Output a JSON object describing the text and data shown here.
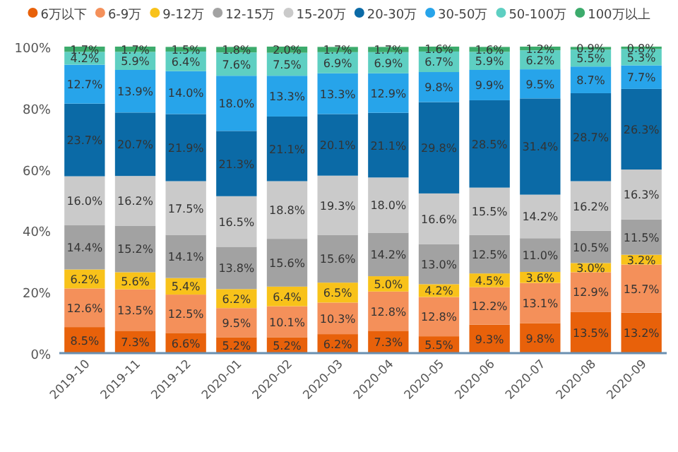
{
  "chart_data": {
    "type": "bar",
    "stacked": true,
    "legend": "top",
    "grid": false,
    "categories": [
      "2019-10",
      "2019-11",
      "2019-12",
      "2020-01",
      "2020-02",
      "2020-03",
      "2020-04",
      "2020-05",
      "2020-06",
      "2020-07",
      "2020-08",
      "2020-09"
    ],
    "ylim": [
      0,
      100
    ],
    "yticks": [
      {
        "value": 0,
        "label": "0%"
      },
      {
        "value": 20,
        "label": "20%"
      },
      {
        "value": 40,
        "label": "40%"
      },
      {
        "value": 60,
        "label": "60%"
      },
      {
        "value": 80,
        "label": "80%"
      },
      {
        "value": 100,
        "label": "100%"
      }
    ],
    "series": [
      {
        "name": "6万以下",
        "color": "#e8610a",
        "values": [
          8.5,
          7.3,
          6.6,
          5.2,
          5.2,
          6.2,
          7.3,
          5.5,
          9.3,
          9.8,
          13.5,
          13.2
        ],
        "value_labels": [
          "8.5%",
          "7.3%",
          "6.6%",
          "5.2%",
          "5.2%",
          "6.2%",
          "7.3%",
          "5.5%",
          "9.3%",
          "9.8%",
          "13.5%",
          "13.2%"
        ]
      },
      {
        "name": "6-9万",
        "color": "#f4905a",
        "values": [
          12.6,
          13.5,
          12.5,
          9.5,
          10.1,
          10.3,
          12.8,
          12.8,
          12.2,
          13.1,
          12.9,
          15.7
        ],
        "value_labels": [
          "12.6%",
          "13.5%",
          "12.5%",
          "9.5%",
          "10.1%",
          "10.3%",
          "12.8%",
          "12.8%",
          "12.2%",
          "13.1%",
          "12.9%",
          "15.7%"
        ]
      },
      {
        "name": "9-12万",
        "color": "#f8c21a",
        "values": [
          6.2,
          5.6,
          5.4,
          6.2,
          6.4,
          6.5,
          5.0,
          4.2,
          4.5,
          3.6,
          3.0,
          3.2
        ],
        "value_labels": [
          "6.2%",
          "5.6%",
          "5.4%",
          "6.2%",
          "6.4%",
          "6.5%",
          "5.0%",
          "4.2%",
          "4.5%",
          "3.6%",
          "3.0%",
          "3.2%"
        ]
      },
      {
        "name": "12-15万",
        "color": "#a2a2a2",
        "values": [
          14.4,
          15.2,
          14.1,
          13.8,
          15.6,
          15.6,
          14.2,
          13.0,
          12.5,
          11.0,
          10.5,
          11.5
        ],
        "value_labels": [
          "14.4%",
          "15.2%",
          "14.1%",
          "13.8%",
          "15.6%",
          "15.6%",
          "14.2%",
          "13.0%",
          "12.5%",
          "11.0%",
          "10.5%",
          "11.5%"
        ]
      },
      {
        "name": "15-20万",
        "color": "#cacaca",
        "values": [
          16.0,
          16.2,
          17.5,
          16.5,
          18.8,
          19.3,
          18.0,
          16.6,
          15.5,
          14.2,
          16.2,
          16.3
        ],
        "value_labels": [
          "16.0%",
          "16.2%",
          "17.5%",
          "16.5%",
          "18.8%",
          "19.3%",
          "18.0%",
          "16.6%",
          "15.5%",
          "14.2%",
          "16.2%",
          "16.3%"
        ]
      },
      {
        "name": "20-30万",
        "color": "#0b6aa6",
        "values": [
          23.7,
          20.7,
          21.9,
          21.3,
          21.1,
          20.1,
          21.1,
          29.8,
          28.5,
          31.4,
          28.7,
          26.3
        ],
        "value_labels": [
          "23.7%",
          "20.7%",
          "21.9%",
          "21.3%",
          "21.1%",
          "20.1%",
          "21.1%",
          "29.8%",
          "28.5%",
          "31.4%",
          "28.7%",
          "26.3%"
        ]
      },
      {
        "name": "30-50万",
        "color": "#27a4ea",
        "values": [
          12.7,
          13.9,
          14.0,
          18.0,
          13.3,
          13.3,
          12.9,
          9.8,
          9.9,
          9.5,
          8.7,
          7.7
        ],
        "value_labels": [
          "12.7%",
          "13.9%",
          "14.0%",
          "18.0%",
          "13.3%",
          "13.3%",
          "12.9%",
          "9.8%",
          "9.9%",
          "9.5%",
          "8.7%",
          "7.7%"
        ]
      },
      {
        "name": "50-100万",
        "color": "#5ecfc2",
        "values": [
          4.2,
          5.9,
          6.4,
          7.6,
          7.5,
          6.9,
          6.9,
          6.7,
          5.9,
          6.2,
          5.5,
          5.3
        ],
        "value_labels": [
          "4.2%",
          "5.9%",
          "6.4%",
          "7.6%",
          "7.5%",
          "6.9%",
          "6.9%",
          "6.7%",
          "5.9%",
          "6.2%",
          "5.5%",
          "5.3%"
        ]
      },
      {
        "name": "100万以上",
        "color": "#3cab6c",
        "values": [
          1.7,
          1.7,
          1.5,
          1.8,
          2.0,
          1.7,
          1.7,
          1.6,
          1.6,
          1.2,
          0.9,
          0.8
        ],
        "value_labels": [
          "1.7%",
          "1.7%",
          "1.5%",
          "1.8%",
          "2.0%",
          "1.7%",
          "1.7%",
          "1.6%",
          "1.6%",
          "1.2%",
          "0.9%",
          "0.8%"
        ]
      }
    ]
  }
}
